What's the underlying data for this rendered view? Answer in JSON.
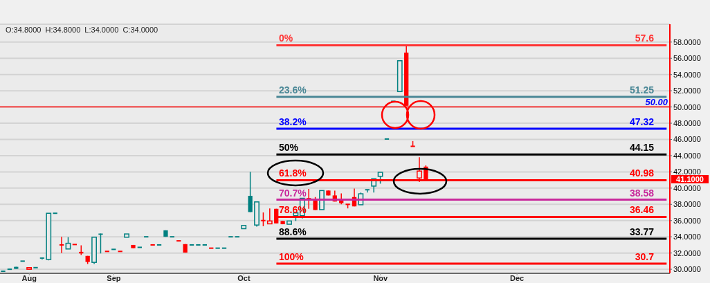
{
  "chart_data": {
    "type": "candlestick",
    "categories": [
      null,
      null,
      null,
      null,
      "Aug",
      null,
      null,
      null,
      null,
      null,
      null,
      null,
      null,
      null,
      null,
      null,
      null,
      "Sep",
      null,
      null,
      null,
      null,
      null,
      null,
      null,
      null,
      null,
      null,
      null,
      null,
      null,
      null,
      null,
      null,
      null,
      null,
      null,
      "Oct",
      null,
      null,
      null,
      null,
      null,
      null,
      null,
      null,
      null,
      null,
      null,
      null,
      null,
      null,
      null,
      null,
      null,
      null,
      null,
      null,
      "Nov",
      null,
      null,
      null,
      null,
      null,
      null,
      null,
      null,
      null,
      null,
      null,
      null,
      null,
      null,
      null,
      null,
      null,
      null,
      null,
      null,
      "Dec",
      null,
      null,
      null,
      null,
      null,
      null,
      null,
      null,
      null,
      null,
      null,
      null,
      null,
      null,
      null,
      null,
      null,
      null,
      null,
      null,
      null,
      null,
      null
    ],
    "ohlc": [
      [
        29.75,
        29.8,
        29.7,
        29.75
      ],
      [
        30,
        30.05,
        29.95,
        30
      ],
      [
        30.3,
        30.3,
        30.05,
        30.05
      ],
      [
        31,
        31,
        31,
        31
      ],
      [
        30,
        30.2,
        30,
        30.2
      ],
      [
        30.2,
        30.2,
        30.2,
        30.2
      ],
      [
        31.45,
        31.45,
        31.2,
        31.3
      ],
      [
        31.2,
        36.9,
        31.1,
        36.9
      ],
      [
        36.9,
        36.9,
        36.9,
        36.9
      ],
      [
        33,
        34,
        32,
        33
      ],
      [
        32.5,
        33.95,
        32.5,
        33.2
      ],
      [
        33.05,
        33.05,
        33.05,
        33.05
      ],
      [
        32.15,
        32.95,
        31.75,
        31.95
      ],
      [
        31.65,
        31.65,
        30.65,
        30.9
      ],
      [
        30.85,
        33.95,
        30.65,
        33.95
      ],
      [
        34.4,
        34.4,
        31.95,
        34.25
      ],
      [
        32.2,
        32.2,
        32.2,
        32.2
      ],
      [
        32.45,
        32.45,
        32.45,
        32.45
      ],
      [
        32.2,
        32.2,
        32.2,
        32.2
      ],
      [
        33.95,
        34.35,
        33.95,
        34.35
      ],
      [
        33,
        33,
        32.6,
        32.6
      ],
      [
        32.7,
        32.7,
        32.7,
        32.7
      ],
      [
        34,
        34,
        34,
        34
      ],
      [
        33,
        33,
        33,
        33
      ],
      [
        33,
        33,
        33,
        33
      ],
      [
        34.8,
        34.8,
        34,
        34
      ],
      [
        34,
        34,
        34,
        34
      ],
      [
        33.5,
        33.5,
        33.5,
        33.5
      ],
      [
        33.1,
        33.1,
        32.05,
        32.05
      ],
      [
        33,
        33,
        33,
        33
      ],
      [
        33,
        33,
        33,
        33
      ],
      [
        33,
        33,
        33,
        33
      ],
      [
        32.6,
        32.6,
        32.6,
        32.6
      ],
      [
        32.6,
        32.6,
        32.6,
        32.6
      ],
      [
        32.6,
        32.6,
        32.6,
        32.6
      ],
      [
        34,
        34,
        34,
        34
      ],
      [
        34,
        34,
        34,
        34
      ],
      [
        35,
        35.4,
        35,
        35.4
      ],
      [
        39.05,
        42,
        37.05,
        37.05
      ],
      [
        35.45,
        38.3,
        35.25,
        38.3
      ],
      [
        36,
        37,
        35.3,
        36
      ],
      [
        35.6,
        37.5,
        35.6,
        35.95
      ],
      [
        37.45,
        37.45,
        35.65,
        35.65
      ],
      [
        35.95,
        35.95,
        35.55,
        35.55
      ],
      [
        35.55,
        35.95,
        35.55,
        35.95
      ],
      [
        36.6,
        36.95,
        35.95,
        36.95
      ],
      [
        36.6,
        38.75,
        36.25,
        38.75
      ],
      [
        38.7,
        39.9,
        37.45,
        38.7
      ],
      [
        38.45,
        38.9,
        37.3,
        37.3
      ],
      [
        37.35,
        39.7,
        37.35,
        39.7
      ],
      [
        39.7,
        39.7,
        39.1,
        39.1
      ],
      [
        39.1,
        39.7,
        38.35,
        38.35
      ],
      [
        38.45,
        39.35,
        38,
        38.15
      ],
      [
        38,
        38,
        37.5,
        38
      ],
      [
        38.9,
        39.95,
        37.75,
        37.75
      ],
      [
        37.95,
        39.45,
        37.95,
        39.3
      ],
      [
        39.8,
        39.8,
        39.45,
        39.8
      ],
      [
        40.25,
        41.15,
        39.45,
        41.15
      ],
      [
        41.45,
        41.95,
        40.55,
        41.95
      ],
      [
        46.05,
        46.05,
        46.05,
        46.05
      ],
      [
        50.7,
        50.7,
        50.7,
        50.7
      ],
      [
        51.9,
        55.7,
        51.9,
        55.7
      ],
      [
        56.7,
        57.6,
        50.15,
        50.15
      ],
      [
        45.15,
        45.8,
        45.15,
        45.15
      ],
      [
        41.25,
        43.8,
        40.75,
        42.1
      ],
      [
        42.65,
        42.8,
        41.1,
        41.1
      ],
      null,
      null,
      null,
      null,
      null,
      null,
      null,
      null,
      null,
      null,
      null,
      null,
      null,
      null,
      null,
      null,
      null,
      null,
      null,
      null,
      null,
      null,
      null,
      null,
      null,
      null,
      null,
      null,
      null,
      null,
      null,
      null,
      null,
      null,
      null,
      null,
      null
    ],
    "colors": [
      "#008080",
      "#008080",
      "#008080",
      "#008080",
      "#ff0000",
      "#008080",
      "#008080",
      "#008080",
      "#008080",
      "#ff0000",
      "#008080",
      "#ff0000",
      "#ff0000",
      "#ff0000",
      "#008080",
      "#008080",
      "#ff0000",
      "#008080",
      "#ff0000",
      "#008080",
      "#ff0000",
      "#008080",
      "#008080",
      "#ff0000",
      "#008080",
      "#008080",
      "#008080",
      "#ff0000",
      "#ff0000",
      "#008080",
      "#008080",
      "#008080",
      "#ff0000",
      "#008080",
      "#008080",
      "#008080",
      "#008080",
      "#008080",
      "#008080",
      "#008080",
      "#ff0000",
      "#ff0000",
      "#ff0000",
      "#ff0000",
      "#008080",
      "#008080",
      "#008080",
      "#ff0000",
      "#ff0000",
      "#008080",
      "#ff0000",
      "#ff0000",
      "#ff0000",
      "#ff0000",
      "#ff0000",
      "#008080",
      "#008080",
      "#008080",
      "#008080",
      "#008080",
      "#008080",
      "#008080",
      "#ff0000",
      "#ff0000",
      "#ff0000",
      "#ff0000",
      null,
      null,
      null,
      null,
      null,
      null,
      null,
      null,
      null,
      null,
      null,
      null,
      null,
      null,
      null,
      null,
      null,
      null,
      null,
      null,
      null,
      null,
      null,
      null,
      null,
      null,
      null,
      null,
      null,
      null,
      null,
      null,
      null,
      null,
      null,
      null,
      null
    ],
    "ylim": [
      29.5,
      60.2
    ],
    "yticks": [
      {
        "value": 30,
        "label": "30.0000"
      },
      {
        "value": 32,
        "label": "32.0000"
      },
      {
        "value": 34,
        "label": "34.0000"
      },
      {
        "value": 36,
        "label": "36.0000"
      },
      {
        "value": 38,
        "label": "38.0000"
      },
      {
        "value": 40,
        "label": "40.0000"
      },
      {
        "value": 42,
        "label": "42.0000"
      },
      {
        "value": 44,
        "label": "44.0000"
      },
      {
        "value": 46,
        "label": "46.0000"
      },
      {
        "value": 48,
        "label": "48.0000"
      },
      {
        "value": 50,
        "label": "50.0000"
      },
      {
        "value": 52,
        "label": "52.0000"
      },
      {
        "value": 54,
        "label": "54.0000"
      },
      {
        "value": 56,
        "label": "56.0000"
      },
      {
        "value": 58,
        "label": "58.0000"
      }
    ],
    "grid": "y",
    "ref_lines": [
      {
        "axis": "y",
        "value": 57.6,
        "label": "57.6",
        "color": "#ff3333"
      },
      {
        "axis": "y",
        "value": 51.25,
        "label": "51.25",
        "color": "#4a8796"
      },
      {
        "axis": "y",
        "value": 50,
        "label": "50.00",
        "color": "#ff0000"
      },
      {
        "axis": "y",
        "value": 47.32,
        "label": "47.32",
        "color": "#0000ff"
      },
      {
        "axis": "y",
        "value": 44.15,
        "label": "44.15",
        "color": "#000000"
      },
      {
        "axis": "y",
        "value": 40.98,
        "label": "40.98",
        "color": "#ff0000"
      },
      {
        "axis": "y",
        "value": 38.58,
        "label": "38.58",
        "color": "#c8289b"
      },
      {
        "axis": "y",
        "value": 36.46,
        "label": "36.46",
        "color": "#ff0000"
      },
      {
        "axis": "y",
        "value": 33.77,
        "label": "33.77",
        "color": "#000000"
      },
      {
        "axis": "y",
        "value": 30.7,
        "label": "30.7",
        "color": "#ff0000"
      }
    ],
    "annotations": [
      "O:34.8000  H:34.8000  L:34.0000  C:34.0000",
      {
        "text": "0%",
        "y": 57.6
      },
      {
        "text": "23.6%",
        "y": 51.25
      },
      {
        "text": "38.2%",
        "y": 47.32
      },
      {
        "text": "50%",
        "y": 44.15
      },
      {
        "text": "61.8%",
        "y": 40.98
      },
      {
        "text": "70.7%",
        "y": 38.58
      },
      {
        "text": "78.6%",
        "y": 36.46
      },
      {
        "text": "88.6%",
        "y": 33.77
      },
      {
        "text": "100%",
        "y": 30.7
      },
      "41.1000"
    ]
  }
}
